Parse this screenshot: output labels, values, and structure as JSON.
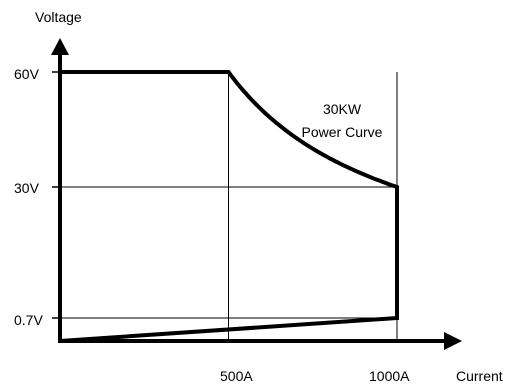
{
  "chart_data": {
    "type": "line",
    "xlabel": "Current",
    "ylabel": "Voltage",
    "x_ticks": [
      {
        "value": 500,
        "label": "500A"
      },
      {
        "value": 1000,
        "label": "1000A"
      }
    ],
    "y_ticks": [
      {
        "value": 0.7,
        "label": "0.7V"
      },
      {
        "value": 30,
        "label": "30V"
      },
      {
        "value": 60,
        "label": "60V"
      }
    ],
    "annotation": {
      "line1": "30KW",
      "line2": "Power Curve"
    },
    "series": [
      {
        "segments": [
          {
            "kind": "line",
            "points": [
              [
                0,
                0
              ],
              [
                0,
                60
              ]
            ]
          },
          {
            "kind": "line",
            "points": [
              [
                0,
                60
              ],
              [
                500,
                60
              ]
            ]
          },
          {
            "kind": "constant_power",
            "power_w": 30000,
            "x_range": [
              500,
              1000
            ]
          },
          {
            "kind": "line",
            "points": [
              [
                1000,
                30
              ],
              [
                1000,
                0.7
              ]
            ]
          },
          {
            "kind": "line",
            "points": [
              [
                1000,
                0.7
              ],
              [
                0,
                0
              ]
            ]
          }
        ]
      }
    ],
    "guides": {
      "vertical": [
        500,
        1000
      ],
      "horizontal": [
        30,
        0.7
      ]
    },
    "grid": false,
    "legend": "none"
  }
}
